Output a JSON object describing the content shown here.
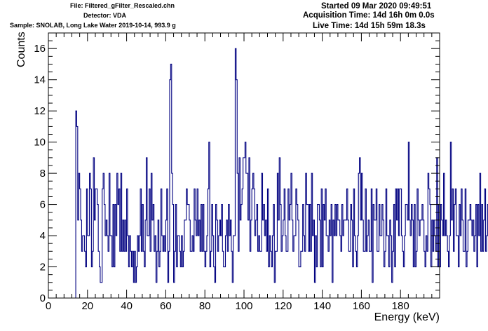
{
  "header": {
    "file": "File: Filtered_gFilter_Rescaled.chn",
    "detector": "Detector: VDA",
    "sample": "Sample: SNOLAB, Long Lake Water 2019-10-14, 993.9 g",
    "started": "Started 09 Mar 2020 09:49:51",
    "acquisition_time": "Acquisition Time: 14d 16h 0m 0.0s",
    "live_time": "Live Time: 14d 15h 59m 18.3s"
  },
  "chart_data": {
    "type": "histogram",
    "title": "",
    "xlabel": "Energy (keV)",
    "ylabel": "Counts",
    "xlim": [
      0,
      200
    ],
    "ylim": [
      0,
      17
    ],
    "x_ticks": [
      0,
      20,
      40,
      60,
      80,
      100,
      120,
      140,
      160,
      180
    ],
    "y_ticks": [
      0,
      2,
      4,
      6,
      8,
      10,
      12,
      14,
      16
    ],
    "bin_width": 0.5,
    "line_color": "#000080",
    "grid": false,
    "x_start": 0,
    "counts": [
      0,
      0,
      0,
      0,
      0,
      0,
      0,
      0,
      0,
      0,
      0,
      0,
      0,
      0,
      0,
      0,
      0,
      0,
      0,
      0,
      0,
      0,
      0,
      0,
      0,
      0,
      0,
      0,
      12,
      11,
      5,
      8,
      7,
      5,
      3,
      4,
      4,
      3,
      2,
      7,
      4,
      4,
      8,
      7,
      2,
      3,
      9,
      5,
      7,
      7,
      6,
      3,
      2,
      1,
      1,
      7,
      8,
      6,
      4,
      5,
      4,
      3,
      8,
      4,
      4,
      2,
      6,
      2,
      6,
      4,
      8,
      6,
      7,
      3,
      8,
      3,
      5,
      3,
      5,
      3,
      7,
      4,
      2,
      4,
      3,
      2,
      3,
      1,
      3,
      1,
      2,
      4,
      3,
      4,
      7,
      3,
      6,
      3,
      2,
      5,
      9,
      4,
      4,
      7,
      3,
      8,
      5,
      6,
      3,
      4,
      1,
      3,
      5,
      2,
      3,
      7,
      4,
      3,
      4,
      3,
      5,
      7,
      1,
      3,
      14,
      15,
      8,
      6,
      1,
      3,
      6,
      2,
      4,
      4,
      3,
      2,
      4,
      2,
      3,
      5,
      5,
      7,
      6,
      6,
      5,
      3,
      3,
      4,
      3,
      7,
      5,
      4,
      7,
      4,
      5,
      3,
      6,
      3,
      6,
      3,
      2,
      3,
      4,
      7,
      10,
      2,
      3,
      6,
      4,
      2,
      1,
      6,
      5,
      3,
      4,
      5,
      4,
      6,
      3,
      2,
      2,
      4,
      5,
      3,
      6,
      4,
      5,
      3,
      1,
      4,
      4,
      16,
      14,
      8,
      3,
      9,
      5,
      6,
      7,
      9,
      9,
      10,
      8,
      8,
      5,
      9,
      3,
      5,
      7,
      8,
      7,
      4,
      5,
      6,
      3,
      4,
      3,
      3,
      8,
      5,
      6,
      4,
      5,
      3,
      7,
      2,
      4,
      3,
      2,
      4,
      6,
      1,
      3,
      3,
      8,
      5,
      9,
      6,
      3,
      4,
      5,
      7,
      4,
      3,
      3,
      7,
      5,
      6,
      8,
      5,
      3,
      4,
      4,
      7,
      6,
      5,
      2,
      2,
      3,
      3,
      6,
      4,
      3,
      8,
      6,
      6,
      3,
      6,
      3,
      8,
      4,
      5,
      1,
      4,
      2,
      6,
      6,
      5,
      2,
      7,
      2,
      6,
      5,
      7,
      4,
      4,
      3,
      5,
      4,
      6,
      1,
      5,
      4,
      6,
      4,
      6,
      5,
      5,
      4,
      3,
      6,
      4,
      5,
      5,
      5,
      7,
      5,
      3,
      3,
      6,
      5,
      2,
      7,
      4,
      3,
      2,
      4,
      8,
      9,
      5,
      8,
      5,
      3,
      3,
      7,
      3,
      4,
      5,
      3,
      3,
      7,
      1,
      6,
      5,
      5,
      7,
      3,
      3,
      6,
      4,
      4,
      6,
      5,
      2,
      3,
      7,
      4,
      4,
      2,
      5,
      4,
      1,
      3,
      6,
      2,
      7,
      5,
      7,
      4,
      7,
      7,
      4,
      3,
      2,
      4,
      6,
      6,
      5,
      10,
      5,
      4,
      6,
      5,
      2,
      6,
      2,
      3,
      7,
      5,
      4,
      5,
      5,
      6,
      5,
      3,
      2,
      4,
      3,
      8,
      7,
      6,
      2,
      5,
      3,
      5,
      4,
      3,
      9,
      2,
      6,
      2,
      6,
      5,
      4,
      8,
      4,
      5,
      4,
      3,
      2,
      4,
      10,
      5,
      7,
      3,
      6,
      7,
      4,
      4,
      2,
      6,
      4,
      7,
      5,
      3,
      3,
      7,
      2,
      3,
      5,
      5,
      6,
      5,
      4,
      5,
      3,
      4,
      6,
      2,
      6,
      4,
      8,
      3,
      6,
      3,
      5,
      7,
      3,
      4,
      6,
      1,
      4,
      7,
      5,
      6,
      5,
      8,
      4,
      5,
      9,
      3,
      1,
      5,
      3,
      2,
      6,
      8,
      6,
      6,
      7,
      6,
      7,
      3,
      6,
      7,
      5,
      9,
      8,
      6,
      7,
      4,
      3,
      10,
      4,
      2,
      6,
      6,
      8,
      3,
      7,
      3,
      5,
      8,
      4,
      4,
      9,
      3,
      6,
      4,
      7,
      5,
      2,
      4,
      3,
      6,
      2,
      4,
      2,
      4,
      6,
      5,
      4,
      7,
      3,
      3,
      2,
      4,
      2,
      4,
      3,
      6,
      2,
      7,
      5,
      2,
      3,
      3,
      3,
      6,
      4,
      7,
      6,
      5,
      2,
      2,
      4,
      7,
      6,
      3,
      4,
      5,
      3,
      2,
      8,
      4,
      3,
      6,
      2,
      6,
      4,
      3,
      1,
      5,
      2,
      2,
      4,
      3,
      8,
      3,
      6,
      4,
      4,
      7,
      2,
      3,
      6,
      5,
      7,
      10,
      5,
      4,
      7,
      4,
      2,
      2,
      5,
      2,
      3,
      7,
      4,
      3,
      4,
      2,
      4,
      5,
      3,
      5,
      7,
      3,
      2,
      7,
      6,
      5,
      6,
      4,
      5,
      3,
      4,
      3,
      4,
      6,
      3,
      5,
      6,
      4,
      3,
      6,
      2,
      7,
      5,
      4,
      6,
      7,
      4,
      6,
      8,
      4,
      5,
      2,
      3,
      5,
      4,
      4,
      3,
      3,
      4,
      2,
      5,
      4,
      2,
      3,
      4,
      6,
      7,
      3,
      2,
      4,
      6,
      3,
      4,
      2,
      6,
      3,
      5,
      7,
      6,
      3
    ]
  }
}
